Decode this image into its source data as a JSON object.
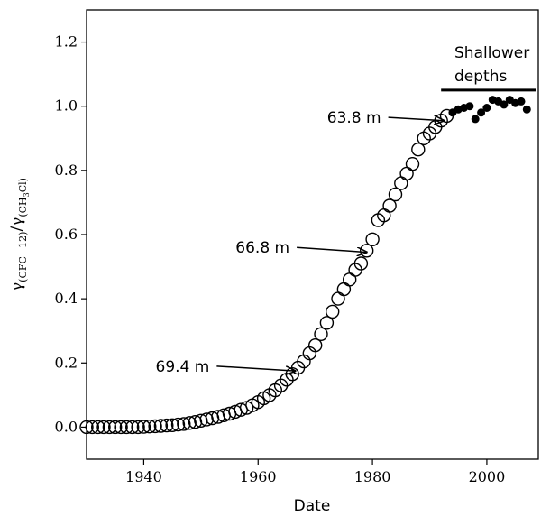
{
  "chart_data": {
    "type": "scatter",
    "xlabel": "Date",
    "ylabel_parts": [
      "γ",
      "(CFC−12)",
      "/γ",
      "(CH",
      "3",
      "Cl)"
    ],
    "xlim": [
      1930,
      2009
    ],
    "ylim": [
      -0.1,
      1.3
    ],
    "xticks": [
      1940,
      1960,
      1980,
      2000
    ],
    "yticks": [
      0.0,
      0.2,
      0.4,
      0.6,
      0.8,
      1.0,
      1.2
    ],
    "ytick_labels": [
      "0.0",
      "0.2",
      "0.4",
      "0.6",
      "0.8",
      "1.0",
      "1.2"
    ],
    "grid": false,
    "series": [
      {
        "marker": "open-circle",
        "x": [
          1930,
          1931,
          1932,
          1933,
          1934,
          1935,
          1936,
          1937,
          1938,
          1939,
          1940,
          1941,
          1942,
          1943,
          1944,
          1945,
          1946,
          1947,
          1948,
          1949,
          1950,
          1951,
          1952,
          1953,
          1954,
          1955,
          1956,
          1957,
          1958,
          1959,
          1960,
          1961,
          1962,
          1963,
          1964,
          1965,
          1966,
          1967,
          1968,
          1969,
          1970,
          1971,
          1972,
          1973,
          1974,
          1975,
          1976,
          1977,
          1978,
          1979,
          1980,
          1981,
          1982,
          1983,
          1984,
          1985,
          1986,
          1987,
          1988,
          1989,
          1990,
          1991,
          1992,
          1993
        ],
        "y": [
          0.0,
          0.0,
          0.0,
          0.0,
          0.0,
          0.0,
          0.0,
          0.0,
          0.0,
          0.0,
          0.001,
          0.002,
          0.003,
          0.004,
          0.005,
          0.006,
          0.008,
          0.01,
          0.013,
          0.016,
          0.02,
          0.024,
          0.028,
          0.032,
          0.037,
          0.042,
          0.048,
          0.054,
          0.06,
          0.068,
          0.078,
          0.09,
          0.1,
          0.115,
          0.13,
          0.148,
          0.165,
          0.185,
          0.205,
          0.23,
          0.255,
          0.29,
          0.325,
          0.36,
          0.4,
          0.43,
          0.46,
          0.49,
          0.51,
          0.55,
          0.585,
          0.645,
          0.66,
          0.69,
          0.725,
          0.76,
          0.79,
          0.82,
          0.865,
          0.9,
          0.915,
          0.935,
          0.955,
          0.97
        ]
      },
      {
        "marker": "filled-circle",
        "x": [
          1994,
          1995,
          1996,
          1997,
          1998,
          1999,
          2000,
          2001,
          2002,
          2003,
          2004,
          2005,
          2006,
          2007
        ],
        "y": [
          0.98,
          0.99,
          0.995,
          1.0,
          0.96,
          0.98,
          0.995,
          1.02,
          1.015,
          1.005,
          1.02,
          1.01,
          1.015,
          0.99
        ]
      }
    ],
    "annotations": [
      {
        "text": "69.4 m",
        "x": 1951.5,
        "y": 0.19,
        "arrow_to_x": 1966.5,
        "arrow_to_y": 0.175
      },
      {
        "text": "66.8 m",
        "x": 1965.5,
        "y": 0.56,
        "arrow_to_x": 1979.0,
        "arrow_to_y": 0.545
      },
      {
        "text": "63.8 m",
        "x": 1981.5,
        "y": 0.965,
        "arrow_to_x": 1992.5,
        "arrow_to_y": 0.955
      }
    ],
    "shallow_label": [
      "Shallower",
      "depths"
    ],
    "shallow_bar": {
      "x_start": 1992,
      "x_end": 2008.6,
      "y": 1.05
    }
  }
}
